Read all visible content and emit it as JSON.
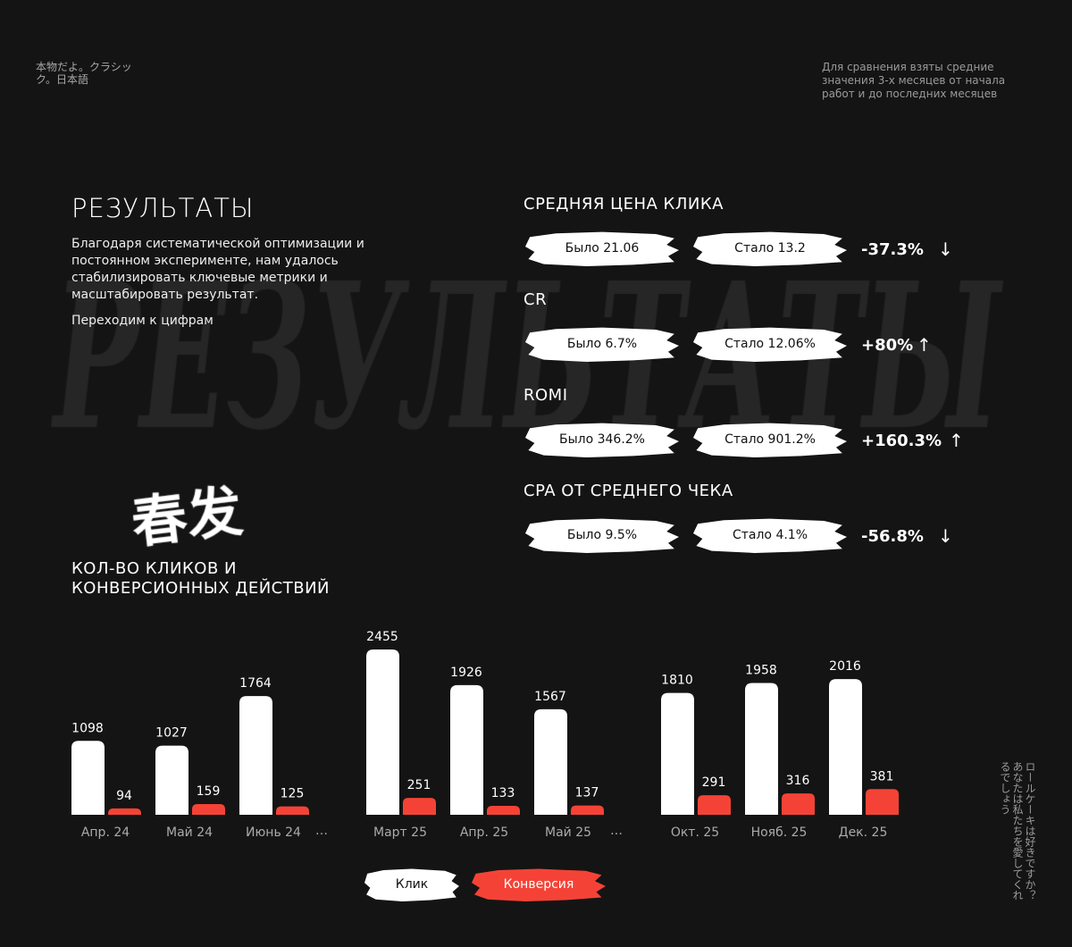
{
  "header": {
    "jp_text": "本物だよ。クラシック。日本語",
    "note": "Для сравнения взяты средние значения 3-х месяцев от начала работ и до последних месяцев"
  },
  "background_word": "РЕЗУЛЬТАТЫ",
  "intro": {
    "title": "РЕЗУЛЬТАТЫ",
    "description": "Благодаря систематической оптимизации и постоянном эксперименте, нам удалось стабилизировать ключевые метрики и масштабировать результат.",
    "cta": "Переходим к цифрам"
  },
  "metrics": [
    {
      "label": "СРЕДНЯЯ ЦЕНА КЛИКА",
      "before": "Было 21.06",
      "after": "Стало 13.2",
      "delta": "-37.3%",
      "direction": "down"
    },
    {
      "label": "CR",
      "before": "Было 6.7%",
      "after": "Стало 12.06%",
      "delta": "+80%",
      "direction": "up"
    },
    {
      "label": "ROMI",
      "before": "Было 346.2%",
      "after": "Стало 901.2%",
      "delta": "+160.3%",
      "direction": "up"
    },
    {
      "label": "CPA ОТ СРЕДНЕГО ЧЕКА",
      "before": "Было 9.5%",
      "after": "Стало 4.1%",
      "delta": "-56.8%",
      "direction": "down"
    }
  ],
  "calligraphy": "春发",
  "side_jp": "ロールケーキは好きですか？あなたは私たちを愛してくれるでしょう",
  "chart_data": {
    "type": "bar",
    "title": "КОЛ-ВО КЛИКОВ И КОНВЕРСИОННЫХ ДЕЙСТВИЙ",
    "categories": [
      "Апр. 24",
      "Май 24",
      "Июнь 24",
      "…",
      "Март 25",
      "Апр. 25",
      "Май 25",
      "…",
      "Окт. 25",
      "Нояб. 25",
      "Дек. 25"
    ],
    "series": [
      {
        "name": "Клик",
        "color": "#ffffff",
        "values": [
          1098,
          1027,
          1764,
          null,
          2455,
          1926,
          1567,
          null,
          1810,
          1958,
          2016
        ]
      },
      {
        "name": "Конверсия",
        "color": "#f44336",
        "values": [
          94,
          159,
          125,
          null,
          251,
          133,
          137,
          null,
          291,
          316,
          381
        ]
      }
    ],
    "legend": "bottom-center",
    "grid": false,
    "ylim": [
      0,
      2455
    ]
  }
}
